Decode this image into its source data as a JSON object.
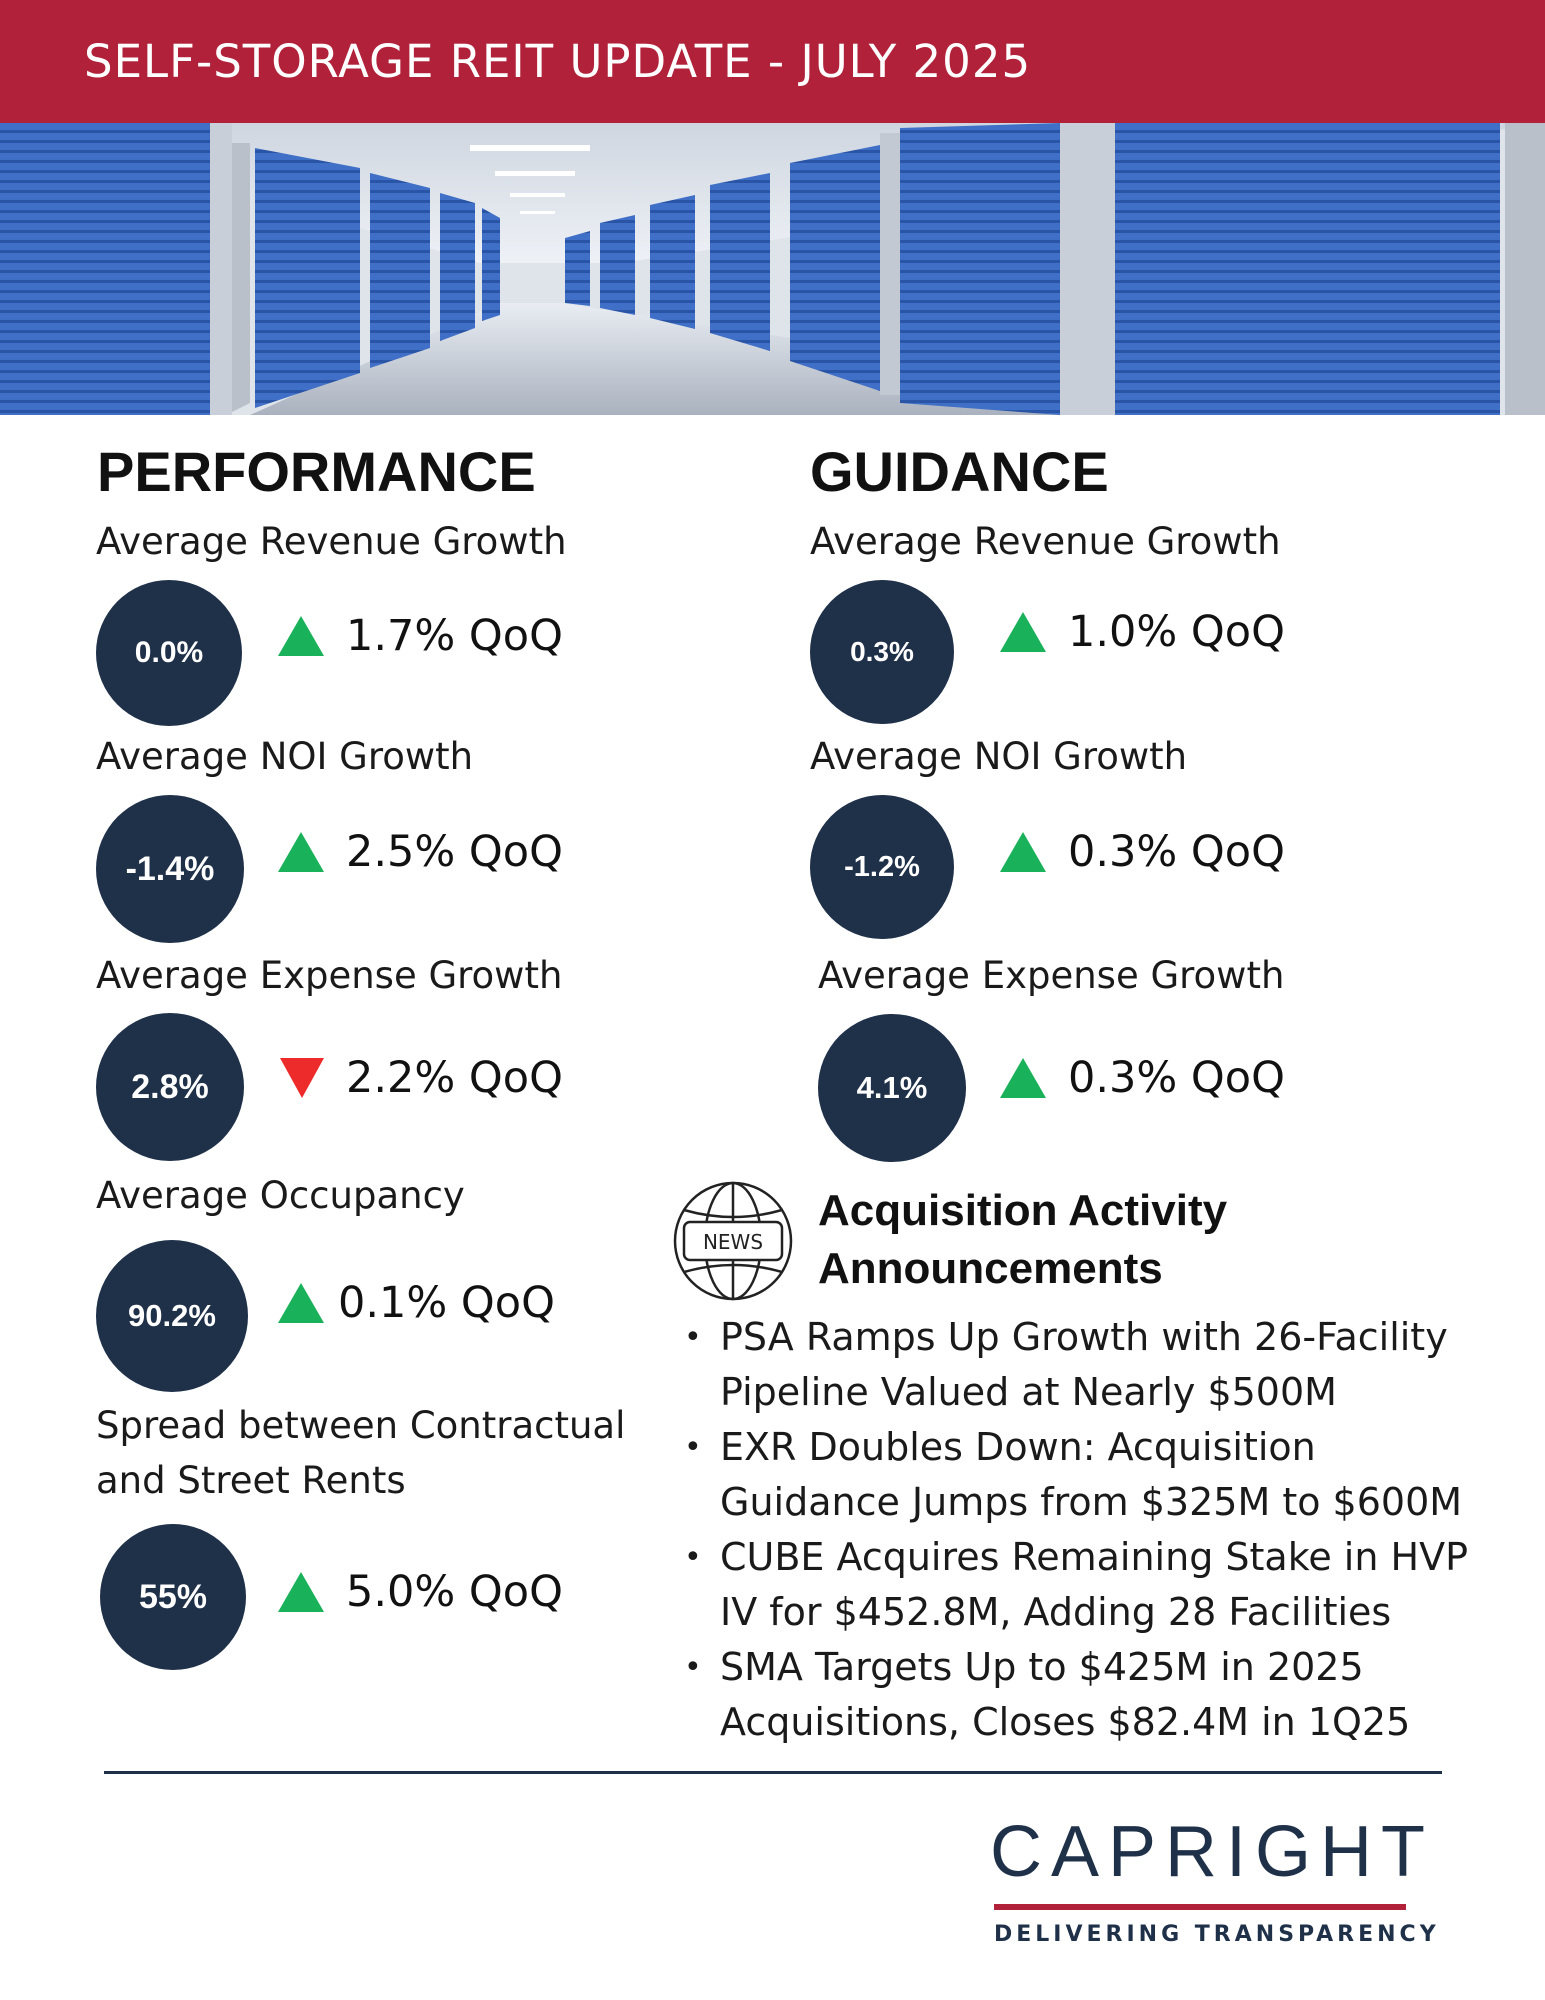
{
  "header": {
    "title": "SELF-STORAGE REIT UPDATE - JULY 2025"
  },
  "hero": {
    "icon": "storage-hallway-photo"
  },
  "performance": {
    "title": "PERFORMANCE",
    "metrics": [
      {
        "label": "Average Revenue Growth",
        "value": "0.0%",
        "direction": "up",
        "change": "1.7% QoQ"
      },
      {
        "label": "Average NOI Growth",
        "value": "-1.4%",
        "direction": "up",
        "change": "2.5% QoQ"
      },
      {
        "label": "Average Expense Growth",
        "value": "2.8%",
        "direction": "down",
        "change": "2.2% QoQ"
      },
      {
        "label": "Average Occupancy",
        "value": "90.2%",
        "direction": "up",
        "change": "0.1% QoQ"
      },
      {
        "label": "Spread between Contractual and Street Rents",
        "value": "55%",
        "direction": "up",
        "change": "5.0% QoQ"
      }
    ]
  },
  "guidance": {
    "title": "GUIDANCE",
    "metrics": [
      {
        "label": "Average Revenue Growth",
        "value": "0.3%",
        "direction": "up",
        "change": "1.0% QoQ"
      },
      {
        "label": "Average NOI Growth",
        "value": "-1.2%",
        "direction": "up",
        "change": "0.3% QoQ"
      },
      {
        "label": "Average Expense Growth",
        "value": "4.1%",
        "direction": "up",
        "change": "0.3% QoQ"
      }
    ]
  },
  "news": {
    "icon_label": "NEWS",
    "title_line1": "Acquisition Activity",
    "title_line2": "Announcements",
    "items": [
      "PSA Ramps Up Growth with 26-Facility Pipeline Valued at Nearly $500M",
      "EXR Doubles Down: Acquisition Guidance Jumps from $325M to $600M",
      "CUBE Acquires Remaining Stake in HVP IV for $452.8M, Adding 28 Facilities",
      "SMA Targets Up to $425M in 2025 Acquisitions, Closes $82.4M in 1Q25"
    ]
  },
  "footer": {
    "logo_text": "CAPRIGHT",
    "tagline": "DELIVERING TRANSPARENCY"
  },
  "colors": {
    "brand_red": "#b1223a",
    "navy": "#1f3049",
    "up_green": "#19b15a",
    "down_red": "#ee2b2b"
  }
}
